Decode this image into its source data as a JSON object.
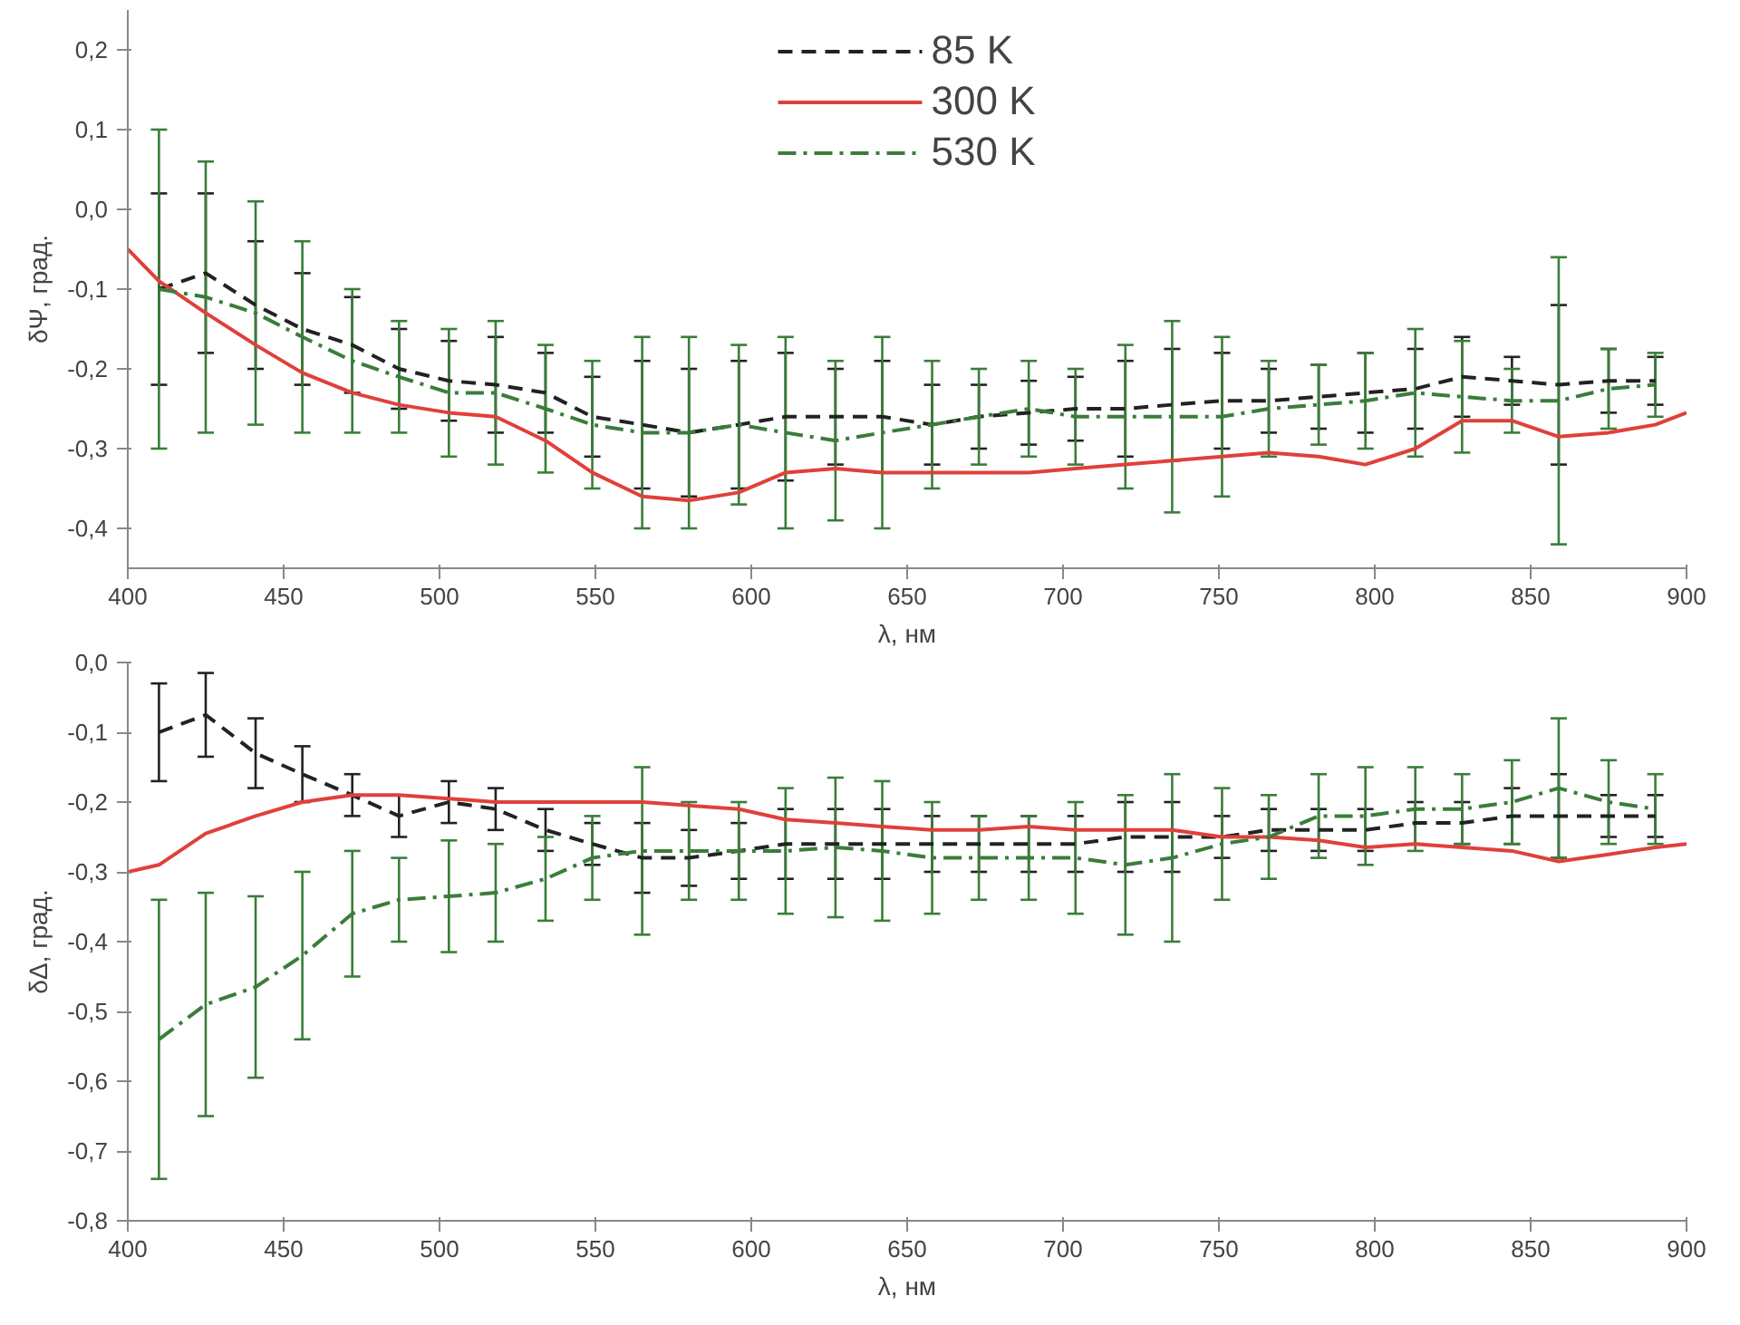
{
  "chart_data": [
    {
      "type": "line",
      "ylabel": "δΨ, град.",
      "xlabel": "λ, нм",
      "xlim": [
        400,
        900
      ],
      "ylim": [
        -0.45,
        0.25
      ],
      "xticks": [
        400,
        450,
        500,
        550,
        600,
        650,
        700,
        750,
        800,
        850,
        900
      ],
      "yticks": [
        {
          "value": 0.2,
          "label": "0,2"
        },
        {
          "value": 0.1,
          "label": "0,1"
        },
        {
          "value": 0.0,
          "label": "0,0"
        },
        {
          "value": -0.1,
          "label": "-0,1"
        },
        {
          "value": -0.2,
          "label": "-0,2"
        },
        {
          "value": -0.3,
          "label": "-0,3"
        },
        {
          "value": -0.4,
          "label": "-0,4"
        }
      ],
      "grid": false,
      "legend": "top",
      "marker": "none",
      "x": [
        410,
        425,
        441,
        456,
        472,
        487,
        503,
        518,
        534,
        549,
        565,
        580,
        596,
        611,
        627,
        642,
        658,
        673,
        689,
        704,
        720,
        735,
        751,
        766,
        782,
        797,
        813,
        828,
        844,
        859,
        875,
        890
      ],
      "series": [
        {
          "name": "85 K",
          "color": "#222222",
          "line_style": "dashed",
          "values": [
            -0.1,
            -0.08,
            -0.12,
            -0.15,
            -0.17,
            -0.2,
            -0.215,
            -0.22,
            -0.23,
            -0.26,
            -0.27,
            -0.28,
            -0.27,
            -0.26,
            -0.26,
            -0.26,
            -0.27,
            -0.26,
            -0.255,
            -0.25,
            -0.25,
            -0.245,
            -0.24,
            -0.24,
            -0.235,
            -0.23,
            -0.225,
            -0.21,
            -0.215,
            -0.22,
            -0.215,
            -0.215
          ],
          "errors": [
            0.12,
            0.1,
            0.08,
            0.07,
            0.06,
            0.05,
            0.05,
            0.06,
            0.05,
            0.05,
            0.08,
            0.08,
            0.08,
            0.08,
            0.06,
            0.07,
            0.05,
            0.04,
            0.04,
            0.04,
            0.06,
            0.07,
            0.06,
            0.04,
            0.04,
            0.05,
            0.05,
            0.05,
            0.03,
            0.1,
            0.04,
            0.03
          ]
        },
        {
          "name": "300 K",
          "color": "#e0403a",
          "line_style": "solid",
          "x": [
            400,
            410,
            425,
            441,
            456,
            472,
            487,
            503,
            518,
            534,
            549,
            565,
            580,
            596,
            611,
            627,
            642,
            658,
            673,
            689,
            704,
            720,
            735,
            751,
            766,
            782,
            797,
            813,
            828,
            844,
            859,
            875,
            890,
            900
          ],
          "values": [
            -0.05,
            -0.09,
            -0.13,
            -0.17,
            -0.205,
            -0.23,
            -0.245,
            -0.255,
            -0.26,
            -0.29,
            -0.33,
            -0.36,
            -0.365,
            -0.355,
            -0.33,
            -0.325,
            -0.33,
            -0.33,
            -0.33,
            -0.33,
            -0.325,
            -0.32,
            -0.315,
            -0.31,
            -0.305,
            -0.31,
            -0.32,
            -0.3,
            -0.265,
            -0.265,
            -0.285,
            -0.28,
            -0.27,
            -0.255
          ]
        },
        {
          "name": "530 K",
          "color": "#3a7d3a",
          "line_style": "dashdot",
          "values": [
            -0.1,
            -0.11,
            -0.13,
            -0.16,
            -0.19,
            -0.21,
            -0.23,
            -0.23,
            -0.25,
            -0.27,
            -0.28,
            -0.28,
            -0.27,
            -0.28,
            -0.29,
            -0.28,
            -0.27,
            -0.26,
            -0.25,
            -0.26,
            -0.26,
            -0.26,
            -0.26,
            -0.25,
            -0.245,
            -0.24,
            -0.23,
            -0.235,
            -0.24,
            -0.24,
            -0.225,
            -0.22
          ],
          "errors": [
            0.2,
            0.17,
            0.14,
            0.12,
            0.09,
            0.07,
            0.08,
            0.09,
            0.08,
            0.08,
            0.12,
            0.12,
            0.1,
            0.12,
            0.1,
            0.12,
            0.08,
            0.06,
            0.06,
            0.06,
            0.09,
            0.12,
            0.1,
            0.06,
            0.05,
            0.06,
            0.08,
            0.07,
            0.04,
            0.18,
            0.05,
            0.04
          ]
        }
      ]
    },
    {
      "type": "line",
      "ylabel": "δΔ, град.",
      "xlabel": "λ, нм",
      "xlim": [
        400,
        900
      ],
      "ylim": [
        -0.8,
        0.0
      ],
      "xticks": [
        400,
        450,
        500,
        550,
        600,
        650,
        700,
        750,
        800,
        850,
        900
      ],
      "yticks": [
        {
          "value": 0.0,
          "label": "0,0"
        },
        {
          "value": -0.1,
          "label": "-0,1"
        },
        {
          "value": -0.2,
          "label": "-0,2"
        },
        {
          "value": -0.3,
          "label": "-0,3"
        },
        {
          "value": -0.4,
          "label": "-0,4"
        },
        {
          "value": -0.5,
          "label": "-0,5"
        },
        {
          "value": -0.6,
          "label": "-0,6"
        },
        {
          "value": -0.7,
          "label": "-0,7"
        },
        {
          "value": -0.8,
          "label": "-0,8"
        }
      ],
      "grid": false,
      "marker": "none",
      "x": [
        410,
        425,
        441,
        456,
        472,
        487,
        503,
        518,
        534,
        549,
        565,
        580,
        596,
        611,
        627,
        642,
        658,
        673,
        689,
        704,
        720,
        735,
        751,
        766,
        782,
        797,
        813,
        828,
        844,
        859,
        875,
        890
      ],
      "series": [
        {
          "color": "#222222",
          "line_style": "dashed",
          "values": [
            -0.1,
            -0.075,
            -0.13,
            -0.16,
            -0.19,
            -0.22,
            -0.2,
            -0.21,
            -0.24,
            -0.26,
            -0.28,
            -0.28,
            -0.27,
            -0.26,
            -0.26,
            -0.26,
            -0.26,
            -0.26,
            -0.26,
            -0.26,
            -0.25,
            -0.25,
            -0.25,
            -0.24,
            -0.24,
            -0.24,
            -0.23,
            -0.23,
            -0.22,
            -0.22,
            -0.22,
            -0.22
          ],
          "errors": [
            0.07,
            0.06,
            0.05,
            0.04,
            0.03,
            0.03,
            0.03,
            0.03,
            0.03,
            0.03,
            0.05,
            0.04,
            0.04,
            0.05,
            0.05,
            0.05,
            0.04,
            0.04,
            0.04,
            0.04,
            0.05,
            0.05,
            0.03,
            0.03,
            0.03,
            0.03,
            0.03,
            0.03,
            0.04,
            0.06,
            0.03,
            0.03
          ]
        },
        {
          "color": "#e0403a",
          "line_style": "solid",
          "x": [
            400,
            410,
            425,
            441,
            456,
            472,
            487,
            503,
            518,
            534,
            549,
            565,
            580,
            596,
            611,
            627,
            642,
            658,
            673,
            689,
            704,
            720,
            735,
            751,
            766,
            782,
            797,
            813,
            828,
            844,
            859,
            875,
            890,
            900
          ],
          "values": [
            -0.3,
            -0.29,
            -0.245,
            -0.22,
            -0.2,
            -0.19,
            -0.19,
            -0.195,
            -0.2,
            -0.2,
            -0.2,
            -0.2,
            -0.205,
            -0.21,
            -0.225,
            -0.23,
            -0.235,
            -0.24,
            -0.24,
            -0.235,
            -0.24,
            -0.24,
            -0.24,
            -0.25,
            -0.25,
            -0.255,
            -0.265,
            -0.26,
            -0.265,
            -0.27,
            -0.285,
            -0.275,
            -0.265,
            -0.26
          ]
        },
        {
          "color": "#3a7d3a",
          "line_style": "dashdot",
          "values": [
            -0.54,
            -0.49,
            -0.465,
            -0.42,
            -0.36,
            -0.34,
            -0.335,
            -0.33,
            -0.31,
            -0.28,
            -0.27,
            -0.27,
            -0.27,
            -0.27,
            -0.265,
            -0.27,
            -0.28,
            -0.28,
            -0.28,
            -0.28,
            -0.29,
            -0.28,
            -0.26,
            -0.25,
            -0.22,
            -0.22,
            -0.21,
            -0.21,
            -0.2,
            -0.18,
            -0.2,
            -0.21
          ],
          "errors": [
            0.2,
            0.16,
            0.13,
            0.12,
            0.09,
            0.06,
            0.08,
            0.07,
            0.06,
            0.06,
            0.12,
            0.07,
            0.07,
            0.09,
            0.1,
            0.1,
            0.08,
            0.06,
            0.06,
            0.08,
            0.1,
            0.12,
            0.08,
            0.06,
            0.06,
            0.07,
            0.06,
            0.05,
            0.06,
            0.1,
            0.06,
            0.05
          ]
        }
      ]
    }
  ]
}
